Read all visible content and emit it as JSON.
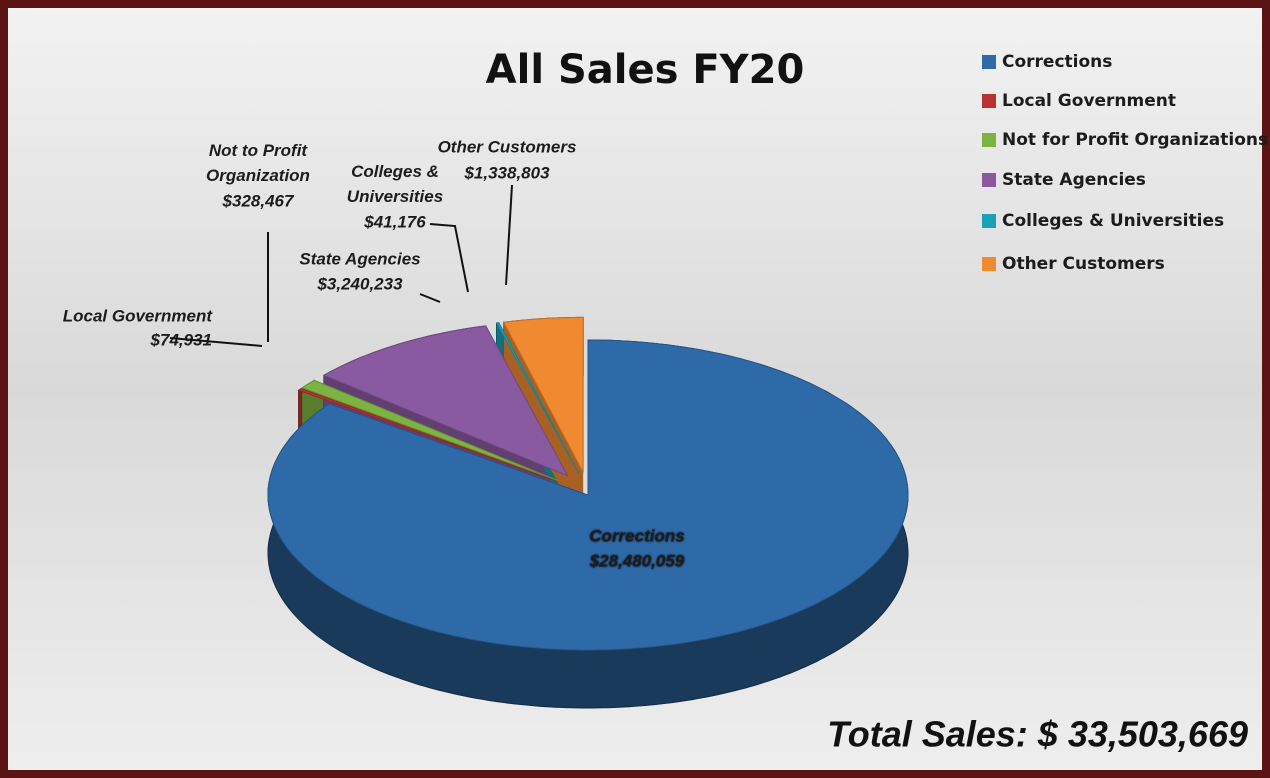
{
  "chart_data": {
    "type": "pie",
    "title": "All Sales FY20",
    "categories": [
      "Corrections",
      "Local Government",
      "Not for Profit Organizations",
      "State Agencies",
      "Colleges & Universities",
      "Other Customers"
    ],
    "point_labels": [
      "Corrections",
      "Local Government",
      "Not to Profit Organization",
      "State Agencies",
      "Colleges & Universities",
      "Other Customers"
    ],
    "values": [
      28480059,
      74931,
      328467,
      3240233,
      41176,
      1338803
    ],
    "value_labels": [
      "$28,480,059",
      "$74,931",
      "$328,467",
      "$3,240,233",
      "$41,176",
      "$1,338,803"
    ],
    "colors": [
      "#2f6aa8",
      "#b83232",
      "#7cb342",
      "#8a5aa0",
      "#1aa0b8",
      "#f08a30"
    ],
    "legend": "right",
    "annotation": "Total Sales: $ 33,503,669"
  }
}
